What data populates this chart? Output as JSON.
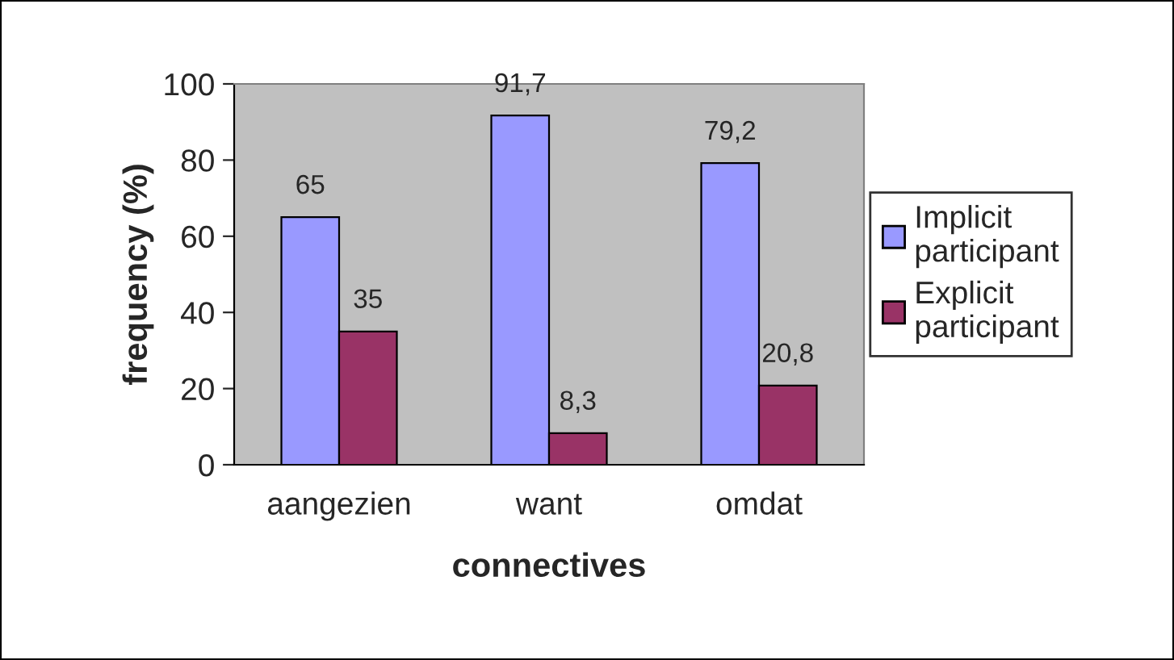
{
  "chart_data": {
    "type": "bar",
    "xlabel": "connectives",
    "ylabel": "frequency (%)",
    "categories": [
      "aangezien",
      "want",
      "omdat"
    ],
    "series": [
      {
        "name": "Implicit participant",
        "color": "#9999ff",
        "values": [
          65,
          91.7,
          79.2
        ],
        "value_labels": [
          "65",
          "91,7",
          "79,2"
        ]
      },
      {
        "name": "Explicit participant",
        "color": "#993366",
        "values": [
          35,
          8.3,
          20.8
        ],
        "value_labels": [
          "35",
          "8,3",
          "20,8"
        ]
      }
    ],
    "ylim": [
      0,
      100
    ],
    "yticks": [
      0,
      20,
      40,
      60,
      80,
      100
    ],
    "grid": false,
    "legend": "right"
  }
}
